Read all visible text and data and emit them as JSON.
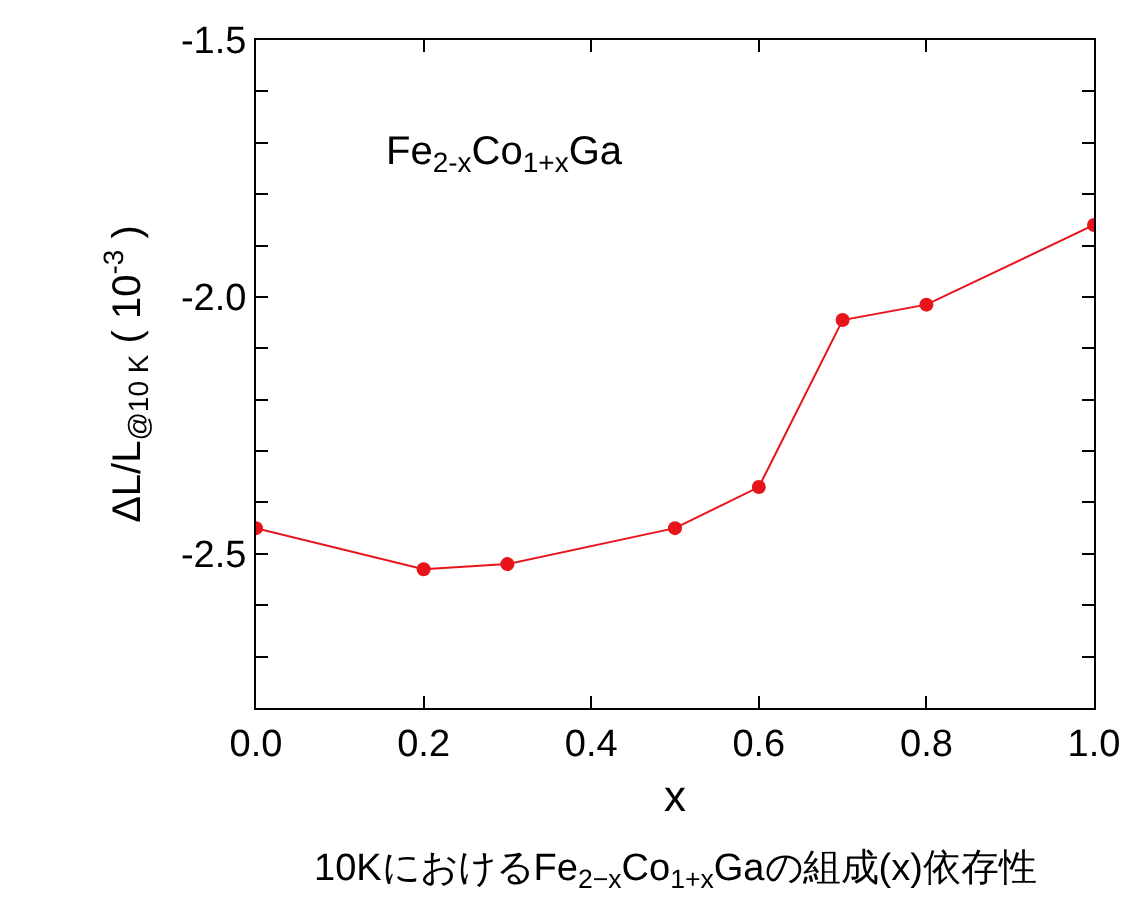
{
  "chart_data": {
    "type": "line",
    "xlabel": "x",
    "ylabel": "ΔL/L$_{@10 K}$ ( 10$^{-3}$ )",
    "annotations": [
      "Fe$_{2-x}$Co$_{1+x}$Ga",
      "10KにおけるFe$_{2−x}$Co$_{1+x}$Gaの組成(x)依存性"
    ],
    "x": [
      0,
      0.2,
      0.3,
      0.5,
      0.6,
      0.7,
      0.8,
      1.0
    ],
    "series": [
      {
        "color": "#e8141c",
        "values": [
          -2.45,
          -2.53,
          -2.52,
          -2.45,
          -2.37,
          -2.045,
          -2.015,
          -1.86
        ]
      }
    ],
    "xlim": [
      0,
      1.0
    ],
    "xticks": [
      {
        "value": 0,
        "label": "0.0"
      },
      {
        "value": 0.2,
        "label": "0.2"
      },
      {
        "value": 0.4,
        "label": "0.4"
      },
      {
        "value": 0.6,
        "label": "0.6"
      },
      {
        "value": 0.8,
        "label": "0.8"
      },
      {
        "value": 1.0,
        "label": "1.0"
      }
    ],
    "ylim": [
      -2.8,
      -1.5
    ],
    "yticks": [
      {
        "value": -2.8,
        "label": null
      },
      {
        "value": -2.7,
        "label": null
      },
      {
        "value": -2.6,
        "label": null
      },
      -2.5,
      {
        "value": -2.4,
        "label": null
      },
      {
        "value": -2.3,
        "label": null
      },
      {
        "value": -2.2,
        "label": null
      },
      {
        "value": -2.1,
        "label": null
      },
      {
        "value": -2.0,
        "label": "-2.0"
      },
      {
        "value": -1.9,
        "label": null
      },
      {
        "value": -1.8,
        "label": null
      },
      {
        "value": -1.7,
        "label": null
      },
      {
        "value": -1.6,
        "label": null
      },
      -1.5
    ],
    "grid": false,
    "marker": "circle",
    "line_style": "solid"
  }
}
